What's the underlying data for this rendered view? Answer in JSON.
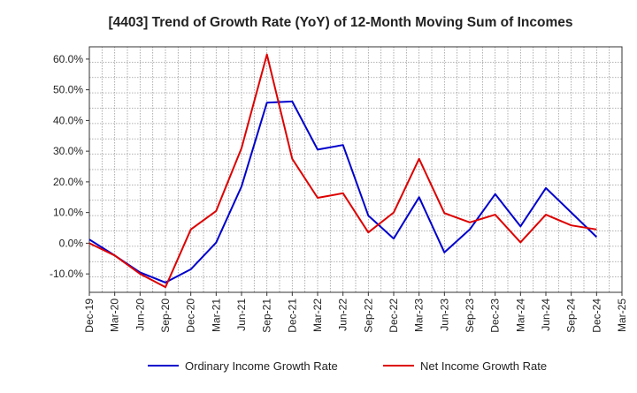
{
  "chart_data": {
    "type": "line",
    "title": "[4403]  Trend of Growth Rate (YoY) of 12-Month Moving Sum of Incomes",
    "xlabel": "",
    "ylabel": "",
    "categories": [
      "Dec-19",
      "Mar-20",
      "Jun-20",
      "Sep-20",
      "Dec-20",
      "Mar-21",
      "Jun-21",
      "Sep-21",
      "Dec-21",
      "Mar-22",
      "Jun-22",
      "Sep-22",
      "Dec-22",
      "Mar-23",
      "Jun-23",
      "Sep-23",
      "Dec-23",
      "Mar-24",
      "Jun-24",
      "Sep-24",
      "Dec-24",
      "Mar-25"
    ],
    "ylim": [
      -16,
      64
    ],
    "yticks": [
      -10,
      0,
      10,
      20,
      30,
      40,
      50,
      60
    ],
    "ytick_labels": [
      "-10.0%",
      "0.0%",
      "10.0%",
      "20.0%",
      "30.0%",
      "40.0%",
      "50.0%",
      "60.0%"
    ],
    "grid": true,
    "legend_position": "bottom",
    "series": [
      {
        "name": "Ordinary Income Growth Rate",
        "color": "#0000cc",
        "values": [
          1.2,
          -4.0,
          -9.5,
          -12.8,
          -8.5,
          0.2,
          18.5,
          45.8,
          46.2,
          30.5,
          32.0,
          9.0,
          1.5,
          15.0,
          -3.0,
          4.5,
          16.0,
          5.5,
          18.0,
          10.0,
          2.0,
          null
        ]
      },
      {
        "name": "Net Income Growth Rate",
        "color": "#dd0000",
        "values": [
          0.0,
          -4.0,
          -10.0,
          -14.3,
          4.5,
          10.5,
          31.0,
          61.5,
          27.5,
          14.8,
          16.3,
          3.5,
          10.0,
          27.5,
          9.8,
          6.8,
          9.3,
          0.3,
          9.3,
          5.8,
          4.5,
          null
        ]
      }
    ]
  }
}
